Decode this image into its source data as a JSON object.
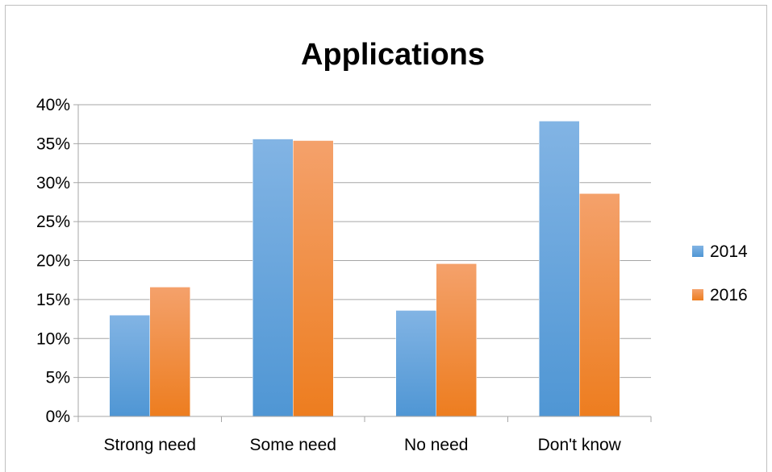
{
  "chart_data": {
    "type": "bar",
    "title": "Applications",
    "categories": [
      "Strong need",
      "Some need",
      "No need",
      "Don't know"
    ],
    "series": [
      {
        "name": "2014",
        "values": [
          13.0,
          35.6,
          13.6,
          37.9
        ],
        "color": "#5b9bd5"
      },
      {
        "name": "2016",
        "values": [
          16.6,
          35.4,
          19.6,
          28.6
        ],
        "color": "#ed7d31"
      }
    ],
    "ylim": [
      0,
      40
    ],
    "yticks": [
      "0%",
      "5%",
      "10%",
      "15%",
      "20%",
      "25%",
      "30%",
      "35%",
      "40%"
    ],
    "ytick_values": [
      0,
      5,
      10,
      15,
      20,
      25,
      30,
      35,
      40
    ],
    "grid": true,
    "legend": "right",
    "xlabel": "",
    "ylabel": ""
  }
}
